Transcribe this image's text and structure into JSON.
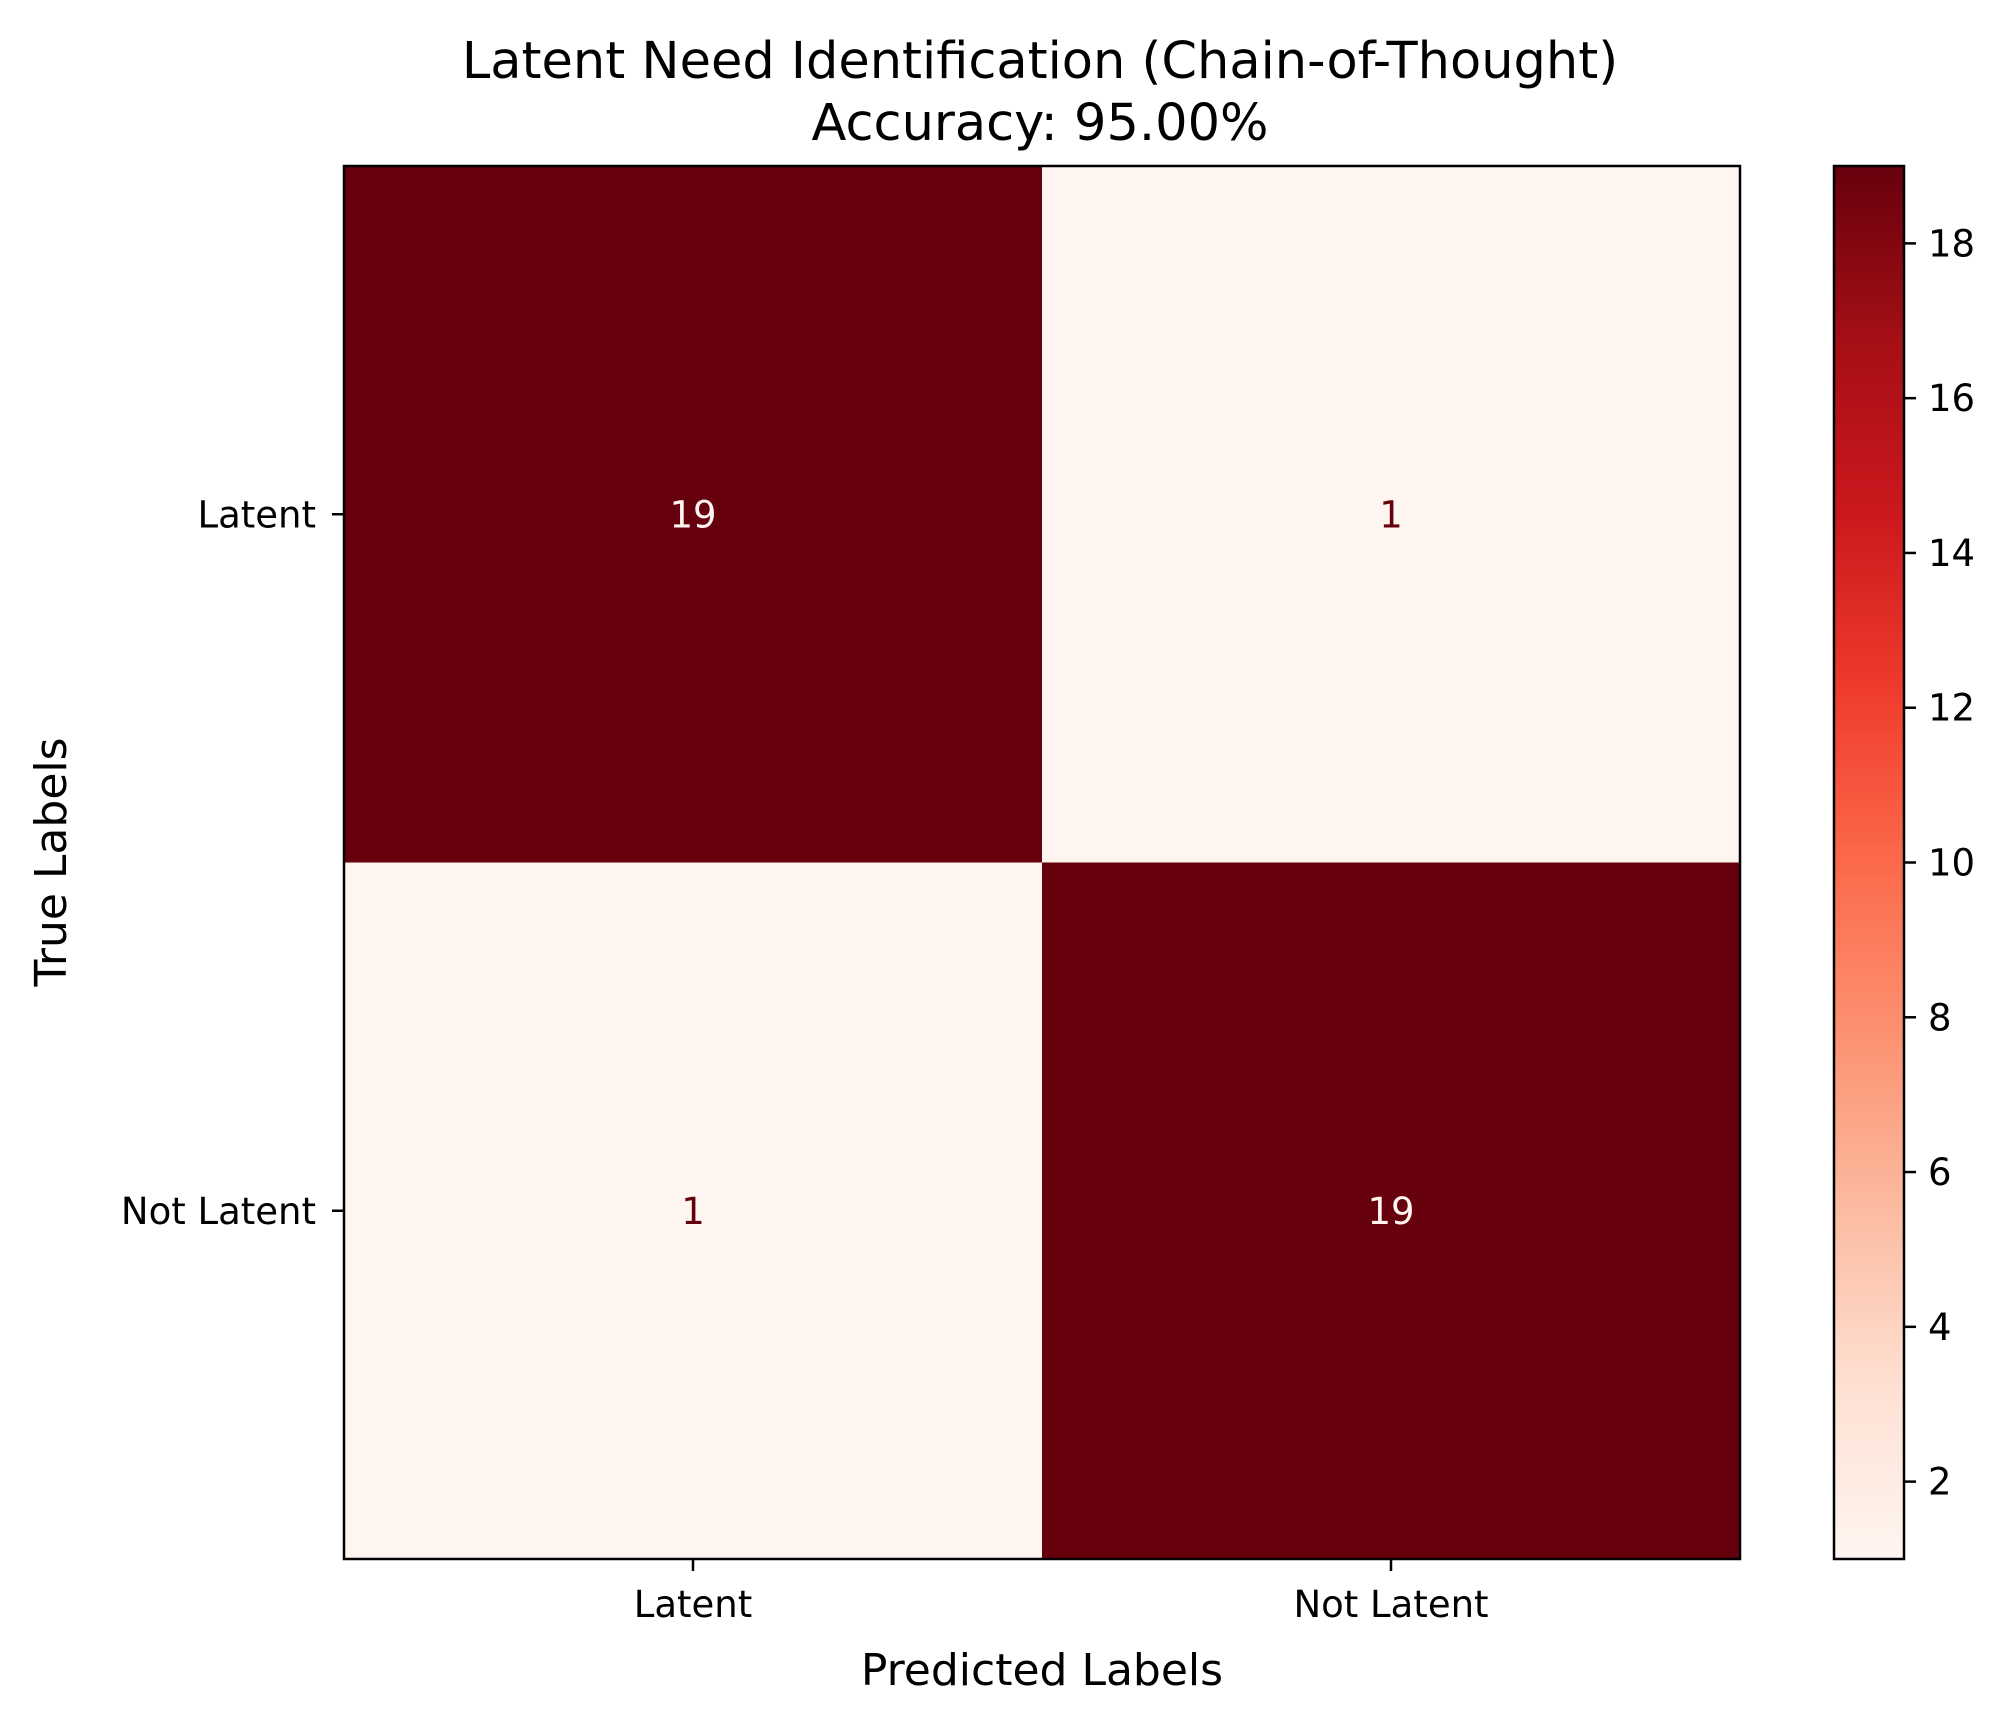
{
  "chart_data": {
    "type": "heatmap",
    "title": "Latent Need Identification (Chain-of-Thought)",
    "subtitle": "Accuracy: 95.00%",
    "xlabel": "Predicted Labels",
    "ylabel": "True Labels",
    "x_categories": [
      "Latent",
      "Not Latent"
    ],
    "y_categories": [
      "Latent",
      "Not Latent"
    ],
    "values": [
      [
        19,
        1
      ],
      [
        1,
        19
      ]
    ],
    "colormap": "Reds",
    "colorbar": {
      "range": [
        1,
        19
      ],
      "ticks": [
        2,
        4,
        6,
        8,
        10,
        12,
        14,
        16,
        18
      ]
    },
    "colors": {
      "low": "#fff5f0",
      "high": "#67000d",
      "text_on_dark": "#fff5f0",
      "text_on_light": "#67000d"
    },
    "grid": false,
    "legend": "colorbar-right"
  }
}
